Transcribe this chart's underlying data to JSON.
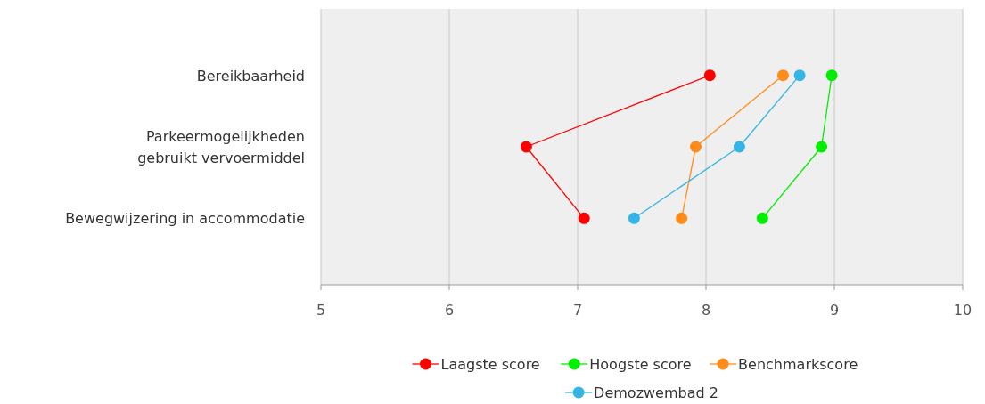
{
  "chart_data": {
    "type": "line",
    "orientation": "horizontal",
    "categories": [
      "Bereikbaarheid",
      "Parkeermogelijkheden\ngebruikt vervoermiddel",
      "Bewegwijzering in accommodatie"
    ],
    "series": [
      {
        "name": "Laagste score",
        "color": "#ff0000",
        "values": [
          8.03,
          6.6,
          7.05
        ]
      },
      {
        "name": "Hoogste score",
        "color": "#00ee00",
        "values": [
          8.98,
          8.9,
          8.44
        ]
      },
      {
        "name": "Benchmarkscore",
        "color": "#ff8c1a",
        "values": [
          8.6,
          7.92,
          7.81
        ]
      },
      {
        "name": "Demozwembad 2",
        "color": "#33b5e5",
        "values": [
          8.73,
          8.26,
          7.44
        ]
      }
    ],
    "xlim": [
      5,
      10
    ],
    "xticks": [
      5,
      6,
      7,
      8,
      9,
      10
    ],
    "grid": "x",
    "legend": "bottom",
    "marker": "circle",
    "line_style": "solid"
  }
}
